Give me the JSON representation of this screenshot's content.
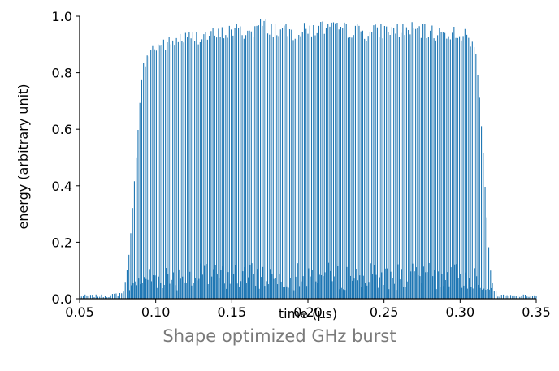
{
  "caption": "Shape optimized GHz burst",
  "chart_data": {
    "type": "line",
    "title": "",
    "xlabel": "time (µs)",
    "ylabel": "energy (arbitrary unit)",
    "xlim": [
      0.05,
      0.35
    ],
    "ylim": [
      0.0,
      1.0
    ],
    "xticks": [
      0.05,
      0.1,
      0.15,
      0.2,
      0.25,
      0.3,
      0.35
    ],
    "xtick_labels": [
      "0.05",
      "0.10",
      "0.15",
      "0.20",
      "0.25",
      "0.30",
      "0.35"
    ],
    "yticks": [
      0.0,
      0.2,
      0.4,
      0.6,
      0.8,
      1.0
    ],
    "ytick_labels": [
      "0.0",
      "0.2",
      "0.4",
      "0.6",
      "0.8",
      "1.0"
    ],
    "grid": false,
    "color": "#1f77b4",
    "series": [
      {
        "x": [
          0.05,
          0.06,
          0.07,
          0.078,
          0.08,
          0.082,
          0.084,
          0.086,
          0.088,
          0.09,
          0.092,
          0.094,
          0.096,
          0.098,
          0.1,
          0.105,
          0.11,
          0.115,
          0.12,
          0.13,
          0.14,
          0.15,
          0.16,
          0.17,
          0.18,
          0.19,
          0.2,
          0.21,
          0.22,
          0.23,
          0.24,
          0.25,
          0.26,
          0.27,
          0.28,
          0.29,
          0.3,
          0.305,
          0.308,
          0.31,
          0.312,
          0.314,
          0.316,
          0.318,
          0.32,
          0.322,
          0.325,
          0.33,
          0.34,
          0.35
        ],
        "y": [
          0.01,
          0.01,
          0.01,
          0.02,
          0.06,
          0.14,
          0.26,
          0.42,
          0.6,
          0.75,
          0.84,
          0.88,
          0.9,
          0.91,
          0.92,
          0.93,
          0.93,
          0.95,
          0.95,
          0.96,
          0.96,
          0.98,
          0.97,
          1.0,
          0.98,
          0.97,
          0.98,
          0.99,
          0.98,
          0.98,
          0.97,
          0.98,
          0.98,
          0.98,
          0.97,
          0.97,
          0.97,
          0.95,
          0.93,
          0.9,
          0.82,
          0.65,
          0.45,
          0.25,
          0.1,
          0.03,
          0.01,
          0.01,
          0.01,
          0.01
        ],
        "envelope_lower": "0.01–0.14 band beneath pulses"
      }
    ]
  }
}
